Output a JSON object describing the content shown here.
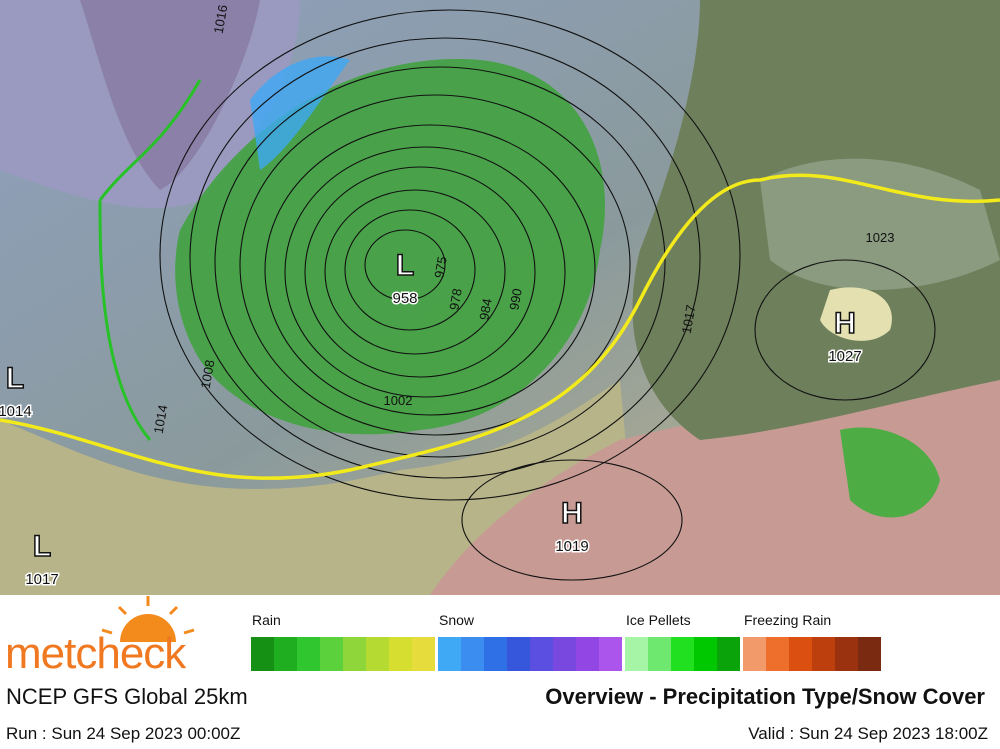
{
  "map": {
    "centers": [
      {
        "symbol": "L",
        "pressure": "958"
      },
      {
        "symbol": "H",
        "pressure": "1027"
      },
      {
        "symbol": "H",
        "pressure": "1019"
      },
      {
        "symbol": "L",
        "pressure": "1017"
      },
      {
        "symbol": "L",
        "pressure": "1014"
      }
    ],
    "isobar_labels": [
      "1002",
      "1008",
      "1014",
      "1017",
      "1023",
      "975",
      "990",
      "984",
      "978",
      "1016"
    ]
  },
  "legend": {
    "groups": [
      {
        "label": "Rain",
        "colors": [
          "#159015",
          "#1fae1f",
          "#2fc62f",
          "#5bd23b",
          "#8fd63a",
          "#b5da32",
          "#d6df30",
          "#e6dd3c"
        ]
      },
      {
        "label": "Snow",
        "colors": [
          "#3fa9f5",
          "#3b8ef0",
          "#2f70e6",
          "#3656dc",
          "#5a4fe0",
          "#7848df",
          "#9246e4",
          "#ab55ec"
        ]
      },
      {
        "label": "Ice Pellets",
        "colors": [
          "#a6f4a6",
          "#6ee86e",
          "#20e020",
          "#00c800",
          "#0aa40a"
        ]
      },
      {
        "label": "Freezing Rain",
        "colors": [
          "#f29a6a",
          "#ee6f2c",
          "#db4f10",
          "#bd3f0e",
          "#9a3210",
          "#7a2a10"
        ]
      }
    ]
  },
  "footer": {
    "brand": "metcheck",
    "model": "NCEP GFS Global 25km",
    "title": "Overview - Precipitation Type/Snow Cover",
    "run": "Run : Sun 24 Sep 2023 00:00Z",
    "valid": "Valid : Sun 24 Sep 2023 18:00Z"
  }
}
